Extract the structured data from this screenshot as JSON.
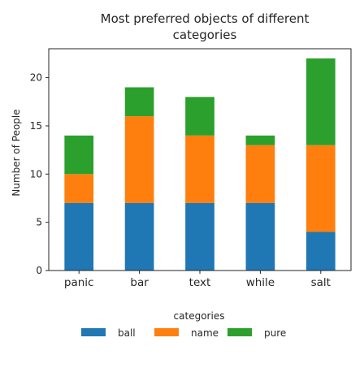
{
  "chart_data": {
    "type": "bar",
    "stacked": true,
    "title_line1": "Most preferred objects of different",
    "title_line2": "categories",
    "xlabel": "",
    "ylabel": "Number of People",
    "categories": [
      "panic",
      "bar",
      "text",
      "while",
      "salt"
    ],
    "ylim": [
      0,
      23
    ],
    "yticks": [
      0,
      5,
      10,
      15,
      20
    ],
    "grid": false,
    "legend": {
      "title": "categories",
      "placement": "bottom"
    },
    "series": [
      {
        "name": "ball",
        "color": "#1f77b4",
        "values": [
          7,
          7,
          7,
          7,
          4
        ]
      },
      {
        "name": "name",
        "color": "#ff7f0e",
        "values": [
          3,
          9,
          7,
          6,
          9
        ]
      },
      {
        "name": "pure",
        "color": "#2ca02c",
        "values": [
          4,
          3,
          4,
          1,
          9
        ]
      }
    ]
  }
}
